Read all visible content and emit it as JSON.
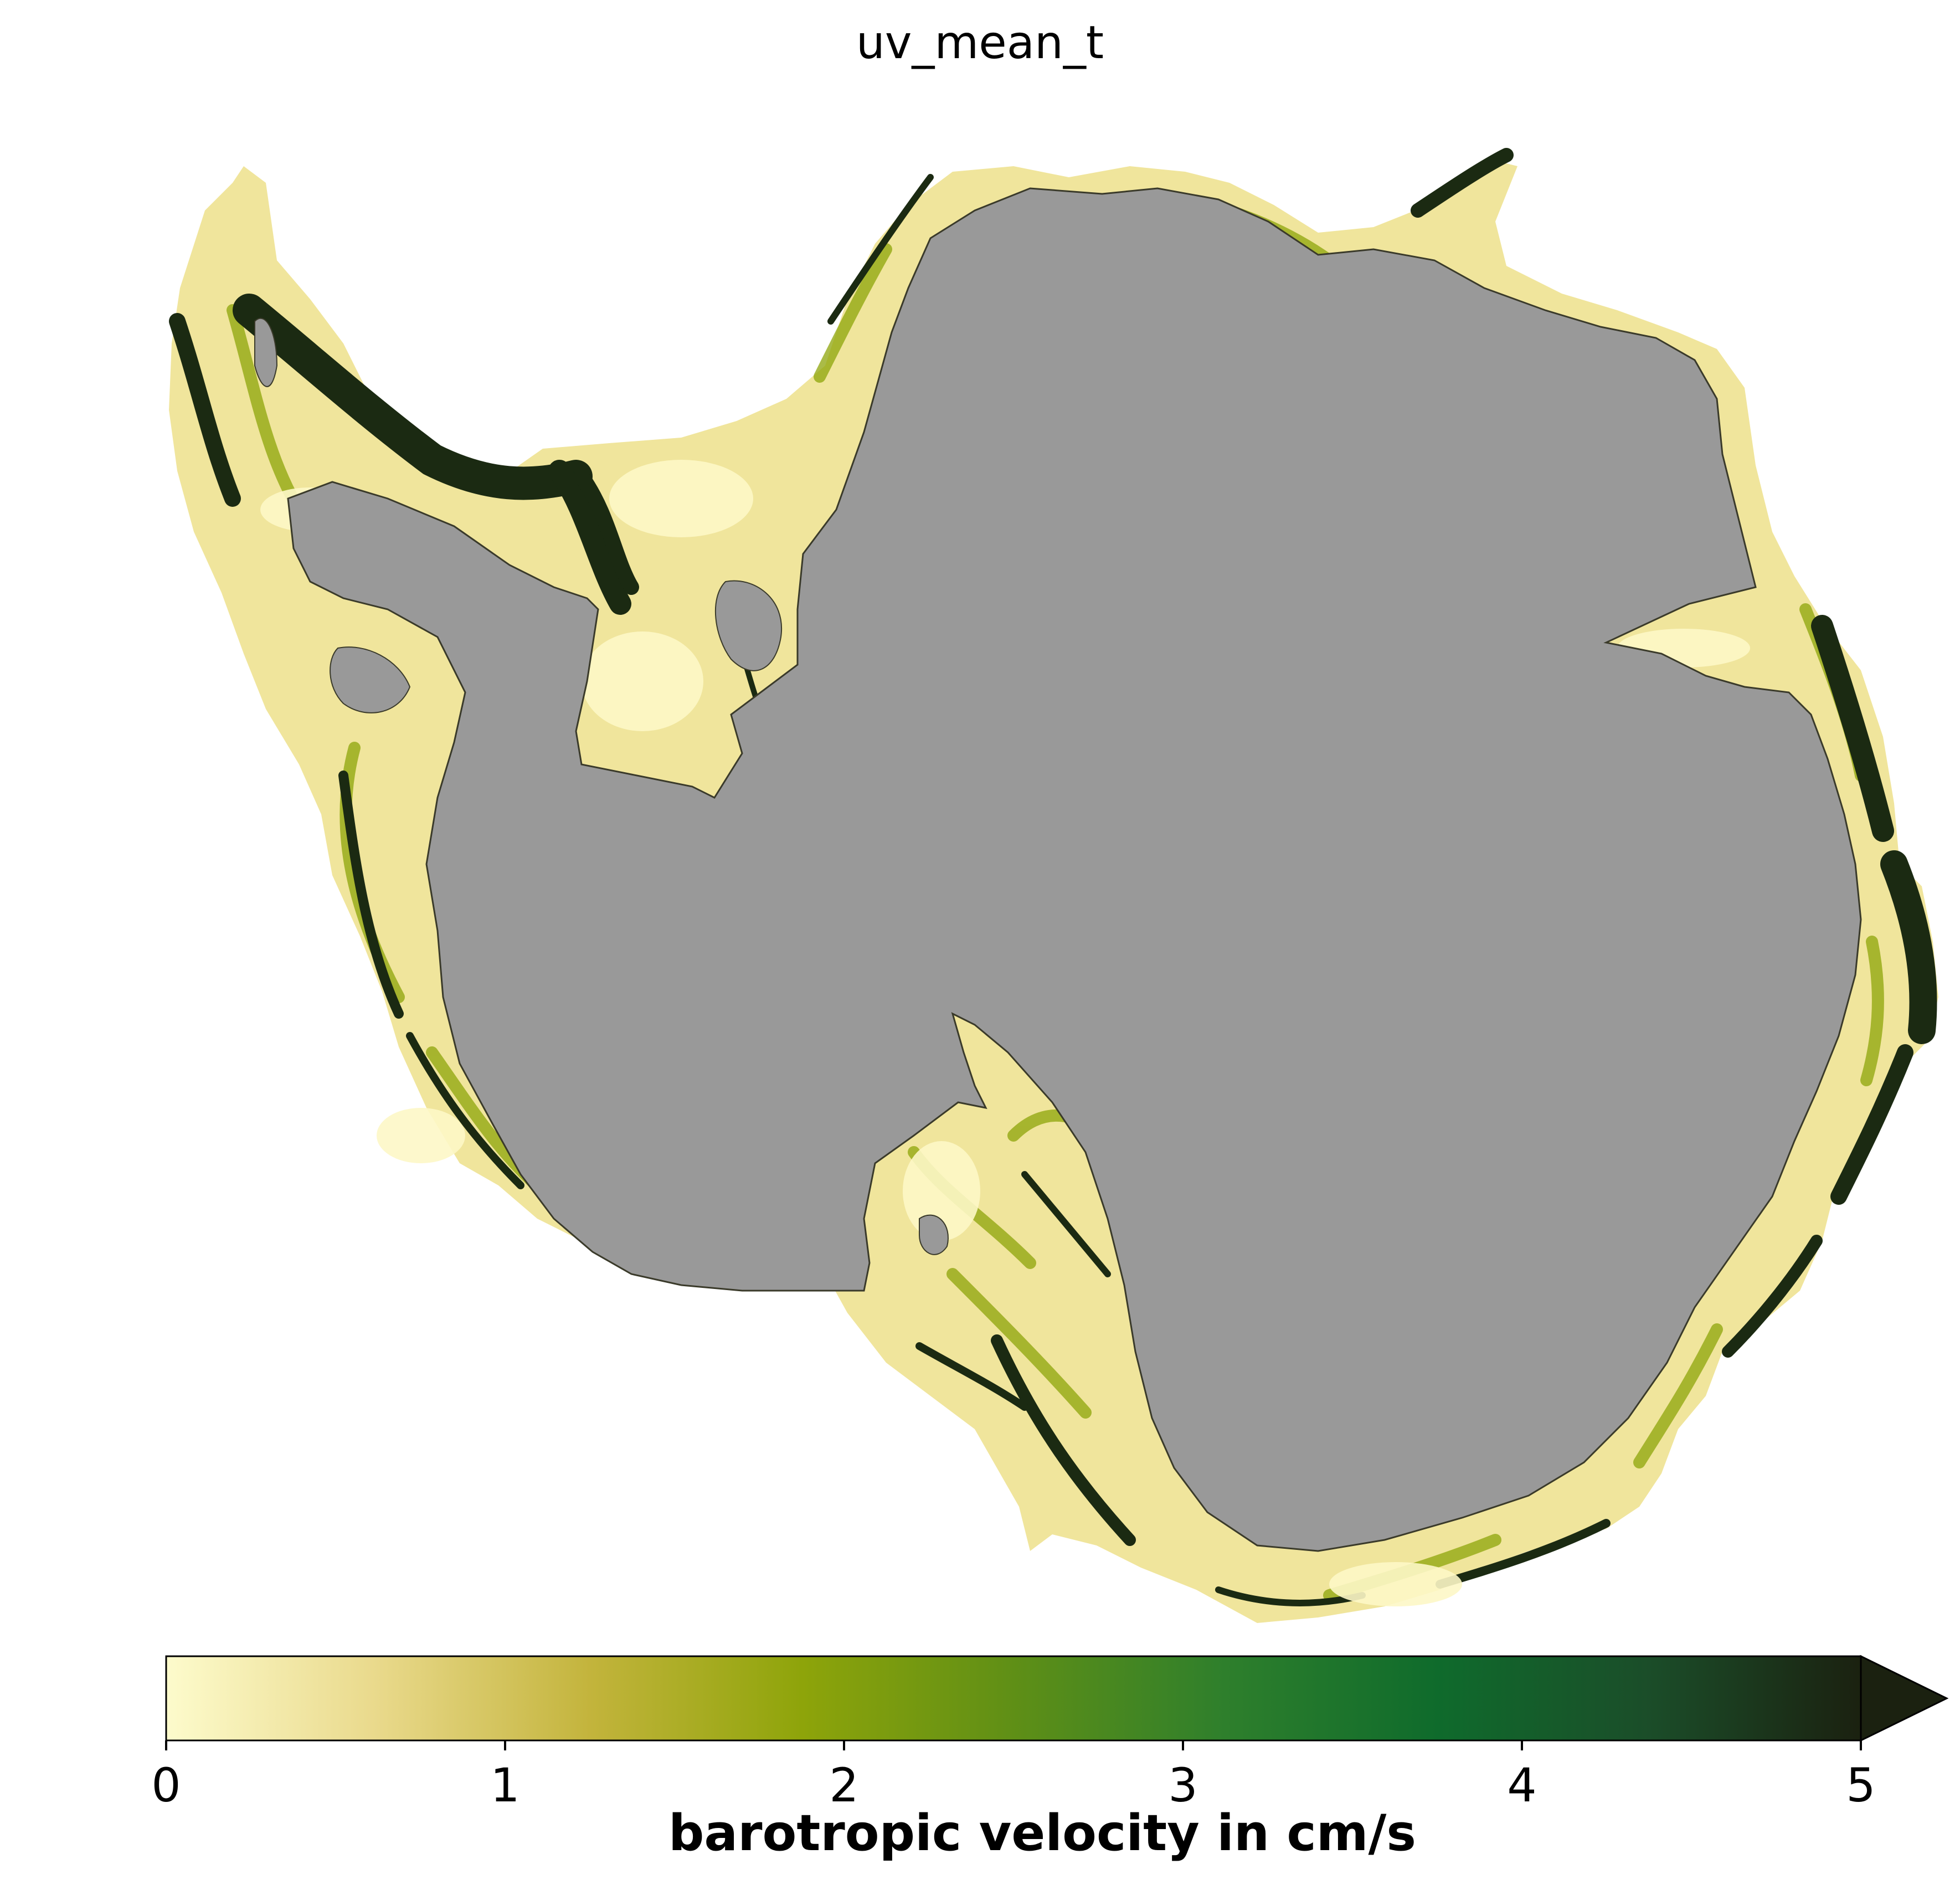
{
  "title": "uv_mean_t",
  "colorbar": {
    "label": "barotropic velocity in cm/s",
    "ticks": [
      "0",
      "1",
      "2",
      "3",
      "4",
      "5"
    ],
    "vmin": 0,
    "vmax": 5,
    "extend": "max",
    "colormap_stops": [
      "#fdfbcc",
      "#e9d98b",
      "#c3b43c",
      "#8ea40a",
      "#5f8f16",
      "#2e7f2c",
      "#0f6b2c",
      "#1b4d29",
      "#1b2110"
    ]
  },
  "colors": {
    "land": "#999999",
    "coastal_low": "#f3eaa6",
    "coastal_mid": "#8ea40a",
    "coastal_high": "#1b2110"
  }
}
